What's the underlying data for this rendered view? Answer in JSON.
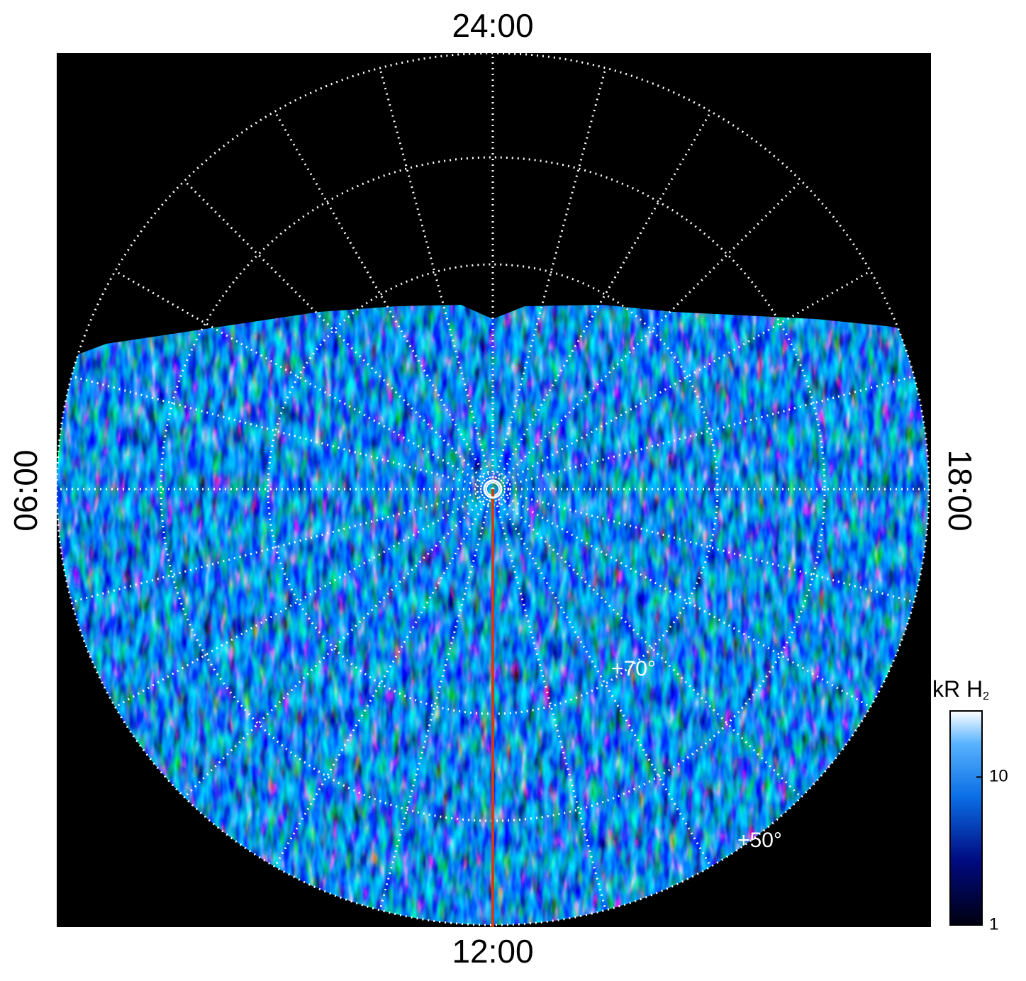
{
  "chart_data": {
    "type": "polar-image",
    "local_time_labels": {
      "top": "24:00",
      "left": "06:00",
      "right": "18:00",
      "bottom": "12:00"
    },
    "latitude_labels": [
      "+70°",
      "+50°"
    ],
    "colorbar": {
      "title": "kR H",
      "title_subscript": "2",
      "log_scale": true,
      "lim": [
        1,
        28
      ],
      "ticks": [
        1,
        10
      ]
    }
  }
}
